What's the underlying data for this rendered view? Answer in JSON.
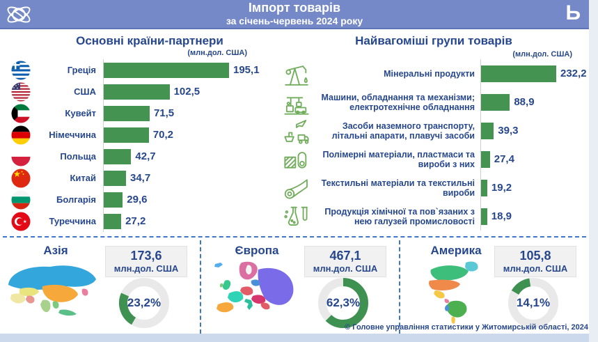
{
  "header": {
    "title": "Імпорт товарів",
    "subtitle": "за січень-червень 2024 року",
    "corner_letter": "Ь",
    "logo": "globe-orbit-icon",
    "bg_color": "#7589C8"
  },
  "panels": {
    "countries": {
      "title": "Основні країни-партнери",
      "unit": "(млн.дол. США)"
    },
    "goods": {
      "title": "Найвагоміші групи товарів",
      "unit": "(млн.дол. США)"
    }
  },
  "chart_data": [
    {
      "type": "bar",
      "orientation": "horizontal",
      "title": "Основні країни-партнери",
      "unit": "млн.дол. США",
      "categories": [
        "Греція",
        "США",
        "Кувейт",
        "Німеччина",
        "Польща",
        "Китай",
        "Болгарія",
        "Туреччина"
      ],
      "values": [
        195.1,
        102.5,
        71.5,
        70.2,
        42.7,
        34.7,
        29.6,
        27.2
      ],
      "value_labels": [
        "195,1",
        "102,5",
        "71,5",
        "70,2",
        "42,7",
        "34,7",
        "29,6",
        "27,2"
      ],
      "flag_icons": [
        "greece-flag-icon",
        "usa-flag-icon",
        "kuwait-flag-icon",
        "germany-flag-icon",
        "poland-flag-icon",
        "china-flag-icon",
        "bulgaria-flag-icon",
        "turkey-flag-icon"
      ],
      "axis_max": 195.1,
      "bar_color": "#459351",
      "grid": false
    },
    {
      "type": "bar",
      "orientation": "horizontal",
      "title": "Найвагоміші групи товарів",
      "unit": "млн.дол. США",
      "categories": [
        "Мінеральні продукти",
        "Машини, обладнання та механізми; електротехнічне обладнання",
        "Засоби наземного транспорту, літальні апарати, плавучі засоби",
        "Полімерні матеріали, пластмаси та вироби з них",
        "Текстильні матеріали та текстильні вироби",
        "Продукція хімічної та пов`язаних з нею галузей промисловості"
      ],
      "values": [
        232.2,
        88.9,
        39.3,
        27.4,
        19.2,
        18.9
      ],
      "value_labels": [
        "232,2",
        "88,9",
        "39,3",
        "27,4",
        "19,2",
        "18,9"
      ],
      "group_icons": [
        "oil-pump-icon",
        "machinery-icon",
        "transport-icon",
        "polymer-icon",
        "textile-icon",
        "chemical-icon"
      ],
      "axis_max": 232.2,
      "bar_color": "#459351",
      "grid": false
    },
    {
      "type": "pie",
      "title": "Імпорт за частинами світу",
      "unit": "млн.дол. США",
      "categories": [
        "Азія",
        "Європа",
        "Америка"
      ],
      "values": [
        173.6,
        467.1,
        105.8
      ],
      "percents": [
        23.2,
        62.3,
        14.1
      ]
    }
  ],
  "regions": [
    {
      "name": "Азія",
      "value": "173,6",
      "unit": "млн.дол. США",
      "percent": 23.2,
      "percent_label": "23,2%"
    },
    {
      "name": "Європа",
      "value": "467,1",
      "unit": "млн.дол. США",
      "percent": 62.3,
      "percent_label": "62,3%"
    },
    {
      "name": "Америка",
      "value": "105,8",
      "unit": "млн.дол. США",
      "percent": 14.1,
      "percent_label": "14,1%"
    }
  ],
  "footer": {
    "copyright": "© Головне управління статистики у Житомирській області, 2024"
  },
  "colors": {
    "header_bg": "#7589C8",
    "accent_text": "#26478D",
    "bar_green": "#459351",
    "icon_green": "#71AD5C",
    "dashed_line": "#4076C9",
    "donut_green": "#3E9151",
    "donut_grey": "#E9E9E9"
  }
}
